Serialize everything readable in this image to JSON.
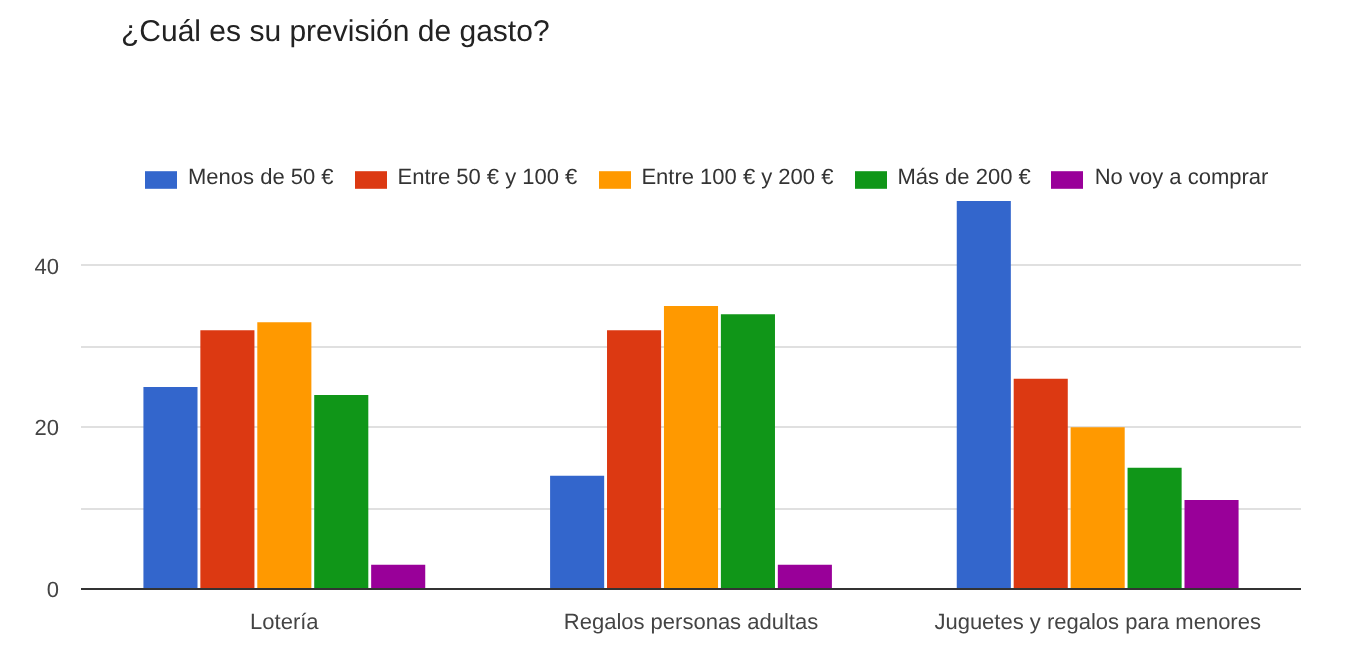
{
  "chart_data": {
    "type": "bar",
    "title": "¿Cuál es su previsión de gasto?",
    "categories": [
      "Lotería",
      "Regalos personas adultas",
      "Juguetes y regalos para menores"
    ],
    "series": [
      {
        "name": "Menos de 50 €",
        "color": "#3366cc",
        "values": [
          25,
          14,
          48
        ]
      },
      {
        "name": "Entre 50 € y 100 €",
        "color": "#dc3912",
        "values": [
          32,
          32,
          26
        ]
      },
      {
        "name": "Entre 100 € y 200 €",
        "color": "#ff9900",
        "values": [
          33,
          35,
          20
        ]
      },
      {
        "name": "Más de 200 €",
        "color": "#109618",
        "values": [
          24,
          34,
          15
        ]
      },
      {
        "name": "No voy a comprar",
        "color": "#990099",
        "values": [
          3,
          3,
          11
        ]
      }
    ],
    "ylim": [
      0,
      48
    ],
    "yticks": [
      0,
      {
        "value": 10,
        "label": null
      },
      20,
      {
        "value": 30,
        "label": null
      },
      40
    ],
    "grid": "y",
    "legend": "top"
  }
}
